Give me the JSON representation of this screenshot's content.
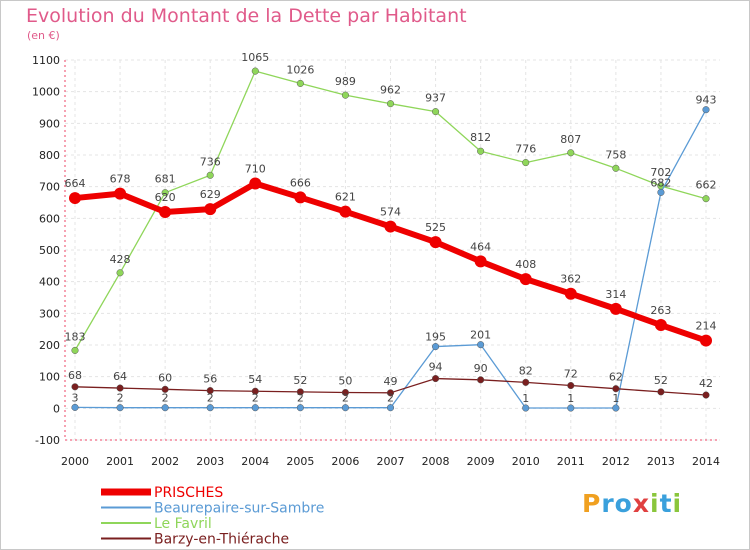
{
  "chart_data": {
    "type": "line",
    "title": "Evolution du Montant de la Dette par Habitant",
    "subtitle": "(en €)",
    "xlabel": "",
    "ylabel": "",
    "ylim": [
      -100,
      1100
    ],
    "yticks": [
      -100,
      0,
      100,
      200,
      300,
      400,
      500,
      600,
      700,
      800,
      900,
      1000,
      1100
    ],
    "x": [
      "2000",
      "2001",
      "2002",
      "2003",
      "2004",
      "2005",
      "2006",
      "2007",
      "2008",
      "2009",
      "2010",
      "2011",
      "2012",
      "2013",
      "2014"
    ],
    "grid": true,
    "legend": "bottom-left",
    "series": [
      {
        "name": "PRISCHES",
        "color": "#ee0000",
        "values": [
          664,
          678,
          620,
          629,
          710,
          666,
          621,
          574,
          525,
          464,
          408,
          362,
          314,
          263,
          214
        ]
      },
      {
        "name": "Beaurepaire-sur-Sambre",
        "color": "#5b9bd5",
        "values": [
          3,
          2,
          2,
          2,
          2,
          2,
          2,
          2,
          195,
          201,
          1,
          1,
          1,
          682,
          943
        ]
      },
      {
        "name": "Le Favril",
        "color": "#8fd65a",
        "values": [
          183,
          428,
          681,
          736,
          1065,
          1026,
          989,
          962,
          937,
          812,
          776,
          807,
          758,
          702,
          662
        ]
      },
      {
        "name": "Barzy-en-Thiérache",
        "color": "#7a1f1f",
        "values": [
          68,
          64,
          60,
          56,
          54,
          52,
          50,
          49,
          94,
          90,
          82,
          72,
          62,
          52,
          42
        ]
      }
    ]
  },
  "logo": {
    "letters": [
      "P",
      "r",
      "o",
      "x",
      "i",
      "t",
      "i"
    ],
    "colors": [
      "#f0a020",
      "#3aa0dc",
      "#3aa0dc",
      "#e04040",
      "#8ac63c",
      "#3aa0dc",
      "#8ac63c"
    ]
  }
}
